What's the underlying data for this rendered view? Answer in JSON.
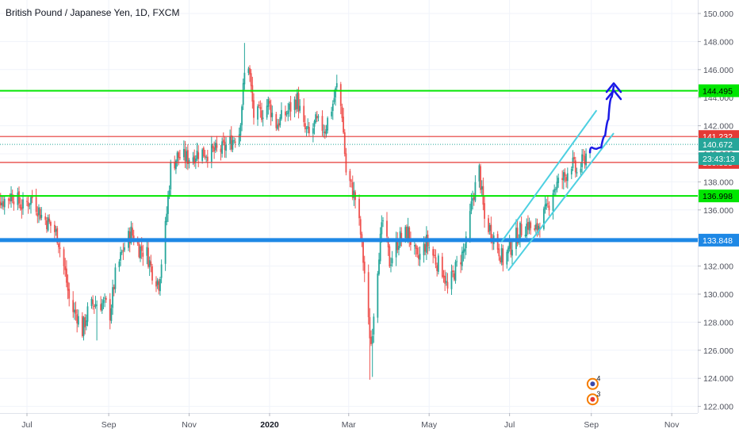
{
  "chart_data": {
    "type": "candlestick",
    "title": "British Pound / Japanese Yen, 1D, FXCM",
    "y_axis": {
      "range": [
        121.6,
        151.0
      ],
      "ticks": [
        150,
        148,
        146,
        144,
        142,
        140,
        138,
        136,
        134,
        132,
        130,
        128,
        126,
        124,
        122
      ],
      "tick_labels": [
        "150.000",
        "148.000",
        "146.000",
        "144.000",
        "142.000",
        "140.000",
        "138.000",
        "136.000",
        "134.000",
        "132.000",
        "130.000",
        "128.000",
        "126.000",
        "124.000",
        "122.000"
      ]
    },
    "x_axis": {
      "range": [
        "2019-06-01",
        "2019-11-30"
      ],
      "ticks": [
        {
          "label": "Jul",
          "date": "2019-07-01",
          "bold": false
        },
        {
          "label": "Sep",
          "date": "2019-09-01",
          "bold": false
        },
        {
          "label": "Nov",
          "date": "2019-11-01",
          "bold": false
        },
        {
          "label": "2020",
          "date": "2020-01-01",
          "bold": true
        },
        {
          "label": "Mar",
          "date": "2020-03-01",
          "bold": false
        },
        {
          "label": "May",
          "date": "2020-05-01",
          "bold": false
        },
        {
          "label": "Jul",
          "date": "2020-07-01",
          "bold": false
        },
        {
          "label": "Sep",
          "date": "2020-09-01",
          "bold": false
        },
        {
          "label": "Nov",
          "date": "2020-11-01",
          "bold": false
        }
      ]
    },
    "colors": {
      "up": "#26a69a",
      "down": "#ef5350",
      "green_level": "#00e600",
      "red_level": "#e53935",
      "blue_level": "#1e88e5",
      "channel": "#4dd0e1",
      "projection": "#1a1ae6"
    },
    "price_path": [
      [
        "2019-06-03",
        138.5
      ],
      [
        "2019-06-12",
        136.6
      ],
      [
        "2019-06-20",
        137.1
      ],
      [
        "2019-06-28",
        136.2
      ],
      [
        "2019-07-05",
        136.9
      ],
      [
        "2019-07-12",
        135.6
      ],
      [
        "2019-07-19",
        134.9
      ],
      [
        "2019-07-24",
        134.2
      ],
      [
        "2019-07-30",
        131.5
      ],
      [
        "2019-08-03",
        129.0
      ],
      [
        "2019-08-08",
        128.5
      ],
      [
        "2019-08-12",
        127.4
      ],
      [
        "2019-08-16",
        128.7
      ],
      [
        "2019-08-20",
        129.3
      ],
      [
        "2019-08-25",
        129.4
      ],
      [
        "2019-08-30",
        129.2
      ],
      [
        "2019-09-02",
        128.6
      ],
      [
        "2019-09-06",
        131.3
      ],
      [
        "2019-09-12",
        133.2
      ],
      [
        "2019-09-18",
        134.4
      ],
      [
        "2019-09-24",
        133.3
      ],
      [
        "2019-09-30",
        132.9
      ],
      [
        "2019-10-04",
        131.6
      ],
      [
        "2019-10-09",
        130.8
      ],
      [
        "2019-10-14",
        134.7
      ],
      [
        "2019-10-18",
        139.0
      ],
      [
        "2019-10-23",
        139.8
      ],
      [
        "2019-10-31",
        139.7
      ],
      [
        "2019-11-08",
        140.1
      ],
      [
        "2019-11-18",
        140.1
      ],
      [
        "2019-11-26",
        140.3
      ],
      [
        "2019-12-03",
        140.9
      ],
      [
        "2019-12-09",
        141.6
      ],
      [
        "2019-12-13",
        145.6
      ],
      [
        "2019-12-16",
        146.4
      ],
      [
        "2019-12-20",
        142.7
      ],
      [
        "2019-12-25",
        142.8
      ],
      [
        "2019-12-31",
        143.6
      ],
      [
        "2020-01-06",
        142.1
      ],
      [
        "2020-01-10",
        142.5
      ],
      [
        "2020-01-17",
        143.3
      ],
      [
        "2020-01-22",
        143.9
      ],
      [
        "2020-01-27",
        141.8
      ],
      [
        "2020-01-31",
        141.3
      ],
      [
        "2020-02-05",
        142.2
      ],
      [
        "2020-02-12",
        141.8
      ],
      [
        "2020-02-18",
        143.6
      ],
      [
        "2020-02-21",
        144.8
      ],
      [
        "2020-02-25",
        142.9
      ],
      [
        "2020-02-28",
        138.7
      ],
      [
        "2020-03-03",
        137.6
      ],
      [
        "2020-03-06",
        136.8
      ],
      [
        "2020-03-10",
        134.3
      ],
      [
        "2020-03-13",
        131.5
      ],
      [
        "2020-03-16",
        127.9
      ],
      [
        "2020-03-18",
        126.5
      ],
      [
        "2020-03-20",
        128.8
      ],
      [
        "2020-03-24",
        133.1
      ],
      [
        "2020-03-27",
        135.2
      ],
      [
        "2020-04-01",
        132.3
      ],
      [
        "2020-04-08",
        133.9
      ],
      [
        "2020-04-15",
        134.4
      ],
      [
        "2020-04-22",
        132.3
      ],
      [
        "2020-04-29",
        133.7
      ],
      [
        "2020-05-06",
        132.4
      ],
      [
        "2020-05-12",
        131.6
      ],
      [
        "2020-05-15",
        130.2
      ],
      [
        "2020-05-20",
        131.6
      ],
      [
        "2020-05-26",
        132.8
      ],
      [
        "2020-05-29",
        133.5
      ],
      [
        "2020-06-03",
        136.9
      ],
      [
        "2020-06-08",
        138.8
      ],
      [
        "2020-06-12",
        135.3
      ],
      [
        "2020-06-17",
        134.5
      ],
      [
        "2020-06-22",
        133.4
      ],
      [
        "2020-06-26",
        132.4
      ],
      [
        "2020-07-01",
        133.2
      ],
      [
        "2020-07-06",
        134.1
      ],
      [
        "2020-07-10",
        134.6
      ],
      [
        "2020-07-15",
        135.0
      ],
      [
        "2020-07-20",
        134.3
      ],
      [
        "2020-07-24",
        135.2
      ],
      [
        "2020-07-29",
        135.9
      ],
      [
        "2020-08-03",
        137.5
      ],
      [
        "2020-08-07",
        137.9
      ],
      [
        "2020-08-12",
        138.4
      ],
      [
        "2020-08-17",
        139.4
      ],
      [
        "2020-08-21",
        138.6
      ],
      [
        "2020-08-26",
        139.5
      ],
      [
        "2020-08-31",
        140.7
      ]
    ],
    "levels": [
      {
        "value": 144.495,
        "label": "144.495",
        "color": "#00e600",
        "width": 2
      },
      {
        "value": 141.232,
        "label": "141.232",
        "color": "#e53935",
        "width": 1.2
      },
      {
        "value": 139.385,
        "label": "139.385",
        "color": "#e53935",
        "width": 1.2
      },
      {
        "value": 136.998,
        "label": "136.998",
        "color": "#00e600",
        "width": 2
      },
      {
        "value": 133.848,
        "label": "133.848",
        "color": "#1e88e5",
        "width": 5
      }
    ],
    "last_price": {
      "value": 140.672,
      "label": "140.672",
      "color": "#26a69a"
    },
    "countdown": {
      "label": "23:43:13",
      "color": "#26a69a"
    },
    "channel": {
      "lower": [
        [
          "2020-07-01",
          131.8
        ],
        [
          "2020-09-15",
          141.1
        ]
      ],
      "upper": [
        [
          "2020-06-27",
          134.0
        ],
        [
          "2020-09-05",
          143.1
        ]
      ],
      "x_start_low": "2020-06-30",
      "x_end_low": "2020-09-18",
      "x_start_up": "2020-06-25",
      "x_end_up": "2020-09-05"
    },
    "projection": {
      "path": [
        [
          "2020-08-31",
          140.1
        ],
        [
          "2020-09-03",
          140.8
        ],
        [
          "2020-09-07",
          139.9
        ],
        [
          "2020-09-10",
          141.0
        ],
        [
          "2020-09-13",
          141.6
        ],
        [
          "2020-09-15",
          143.3
        ],
        [
          "2020-09-18",
          144.8
        ]
      ],
      "arrowhead": "double-chevron-up"
    },
    "event_markers": [
      {
        "label": "4",
        "date": "2020-09-02",
        "price": 123.6
      },
      {
        "label": "3",
        "date": "2020-09-02",
        "price": 122.5
      }
    ]
  }
}
